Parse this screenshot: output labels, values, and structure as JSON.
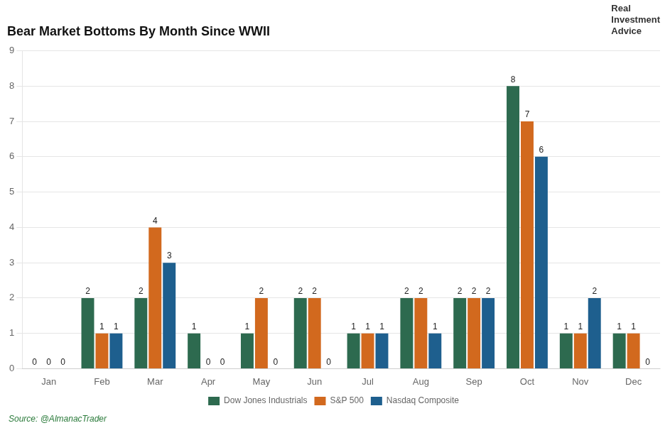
{
  "chart_data": {
    "type": "bar",
    "title": "Bear Market Bottoms By Month Since WWII",
    "categories": [
      "Jan",
      "Feb",
      "Mar",
      "Apr",
      "May",
      "Jun",
      "Jul",
      "Aug",
      "Sep",
      "Oct",
      "Nov",
      "Dec"
    ],
    "series": [
      {
        "name": "Dow Jones Industrials",
        "color": "#2d6a4f",
        "values": [
          0,
          2,
          2,
          1,
          1,
          2,
          1,
          2,
          2,
          8,
          1,
          1
        ]
      },
      {
        "name": "S&P 500",
        "color": "#d2691e",
        "values": [
          0,
          1,
          4,
          0,
          2,
          2,
          1,
          2,
          2,
          7,
          1,
          1
        ]
      },
      {
        "name": "Nasdaq Composite",
        "color": "#1e5f8e",
        "values": [
          0,
          1,
          3,
          0,
          0,
          0,
          1,
          1,
          2,
          6,
          2,
          0
        ]
      }
    ],
    "ylim": [
      0,
      9
    ],
    "yticks": [
      0,
      1,
      2,
      3,
      4,
      5,
      6,
      7,
      8,
      9
    ],
    "grid": true,
    "legend": "bottom",
    "data_labels": true,
    "annotations": [
      "Source: @AlmanacTrader",
      "Real\nInvestment\nAdvice"
    ]
  }
}
